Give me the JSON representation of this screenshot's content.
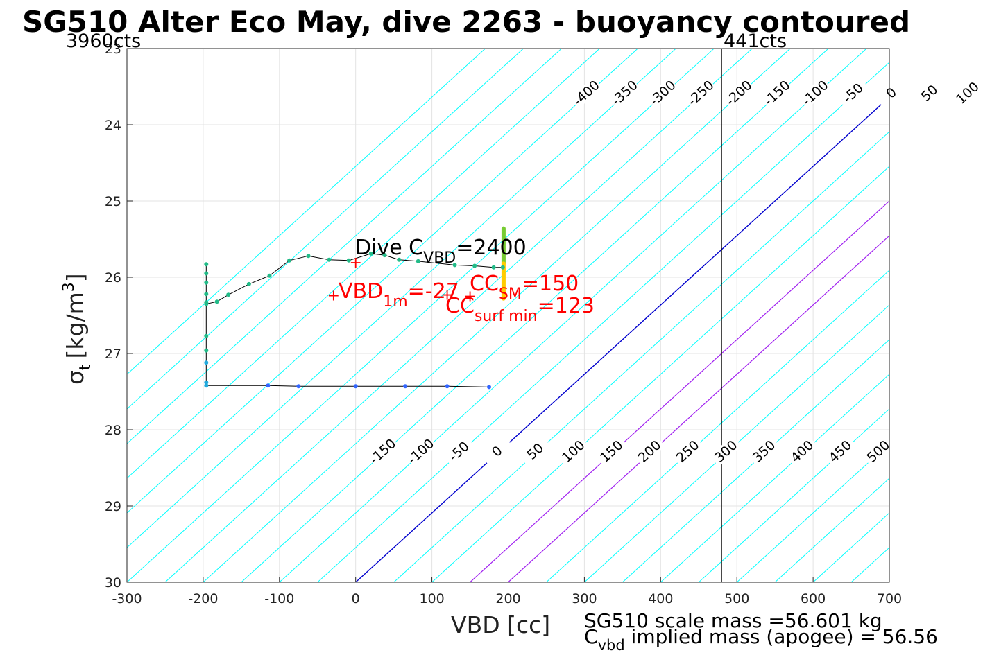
{
  "title": "SG510 Alter Eco May, dive 2263 - buoyancy contoured",
  "counts": {
    "left": "3960cts",
    "right": "441cts"
  },
  "axes": {
    "xlabel": "VBD [cc]",
    "ylabel_main": "σ",
    "ylabel_sub": "t",
    "ylabel_unit": "[kg/m",
    "ylabel_sup": "3",
    "ylabel_close": "]",
    "xticks": [
      "-300",
      "-200",
      "-100",
      "0",
      "100",
      "200",
      "300",
      "400",
      "500",
      "600",
      "700"
    ],
    "yticks": [
      "23",
      "24",
      "25",
      "26",
      "27",
      "28",
      "29",
      "30"
    ]
  },
  "annotations": {
    "dive_c_vbd": {
      "pre": "Dive C",
      "sub": "VBD",
      "post": "=2400"
    },
    "vbd_1m": {
      "pre": "VBD",
      "sub": "1m",
      "post": "=-27"
    },
    "cc_sm": {
      "pre": "CC",
      "sub": "SM",
      "post": "=150"
    },
    "cc_surf_min": {
      "pre": "CC",
      "sub": "surf min",
      "post": "=123"
    }
  },
  "footer": {
    "scale_mass": "SG510 scale mass =56.601 kg",
    "implied_pre": "C",
    "implied_sub": "vbd",
    "implied_post": " implied mass (apogee) = 56.56"
  },
  "colors": {
    "contour": "#00ffff",
    "zero_line": "#0000cd",
    "highlight_lines": "#a020f0",
    "marker_red": "#ff0000",
    "profile_line": "#000000",
    "bottom_points": "#3366ff",
    "upper_points": "#22bb88",
    "bar_top": "#77cc33",
    "bar_bottom": "#ffcc00"
  },
  "chart_data": {
    "type": "scatter",
    "xlim": [
      -300,
      700
    ],
    "ylim": [
      23,
      30
    ],
    "y_reversed": true,
    "grid": true,
    "contour_levels_top": [
      -400,
      -350,
      -300,
      -250,
      -200,
      -150,
      -100,
      -50,
      0,
      50,
      100,
      150,
      200,
      250,
      300,
      350,
      400,
      450,
      500
    ],
    "contour_levels_bottom": [
      -150,
      -100,
      -50,
      0,
      50,
      100,
      150,
      200,
      250,
      300,
      350,
      400,
      450,
      500
    ],
    "highlighted_contours": [
      0,
      150,
      200
    ],
    "vertical_line_vbd": 480,
    "profile_points": [
      {
        "x": 175,
        "y": 27.44
      },
      {
        "x": 120,
        "y": 27.43
      },
      {
        "x": 65,
        "y": 27.43
      },
      {
        "x": 0,
        "y": 27.43
      },
      {
        "x": -75,
        "y": 27.43
      },
      {
        "x": -115,
        "y": 27.42
      },
      {
        "x": -196,
        "y": 27.42
      },
      {
        "x": -196,
        "y": 27.38
      },
      {
        "x": -196,
        "y": 27.12
      },
      {
        "x": -196,
        "y": 26.96
      },
      {
        "x": -196,
        "y": 26.77
      },
      {
        "x": -196,
        "y": 26.33
      },
      {
        "x": -196,
        "y": 26.22
      },
      {
        "x": -196,
        "y": 26.07
      },
      {
        "x": -196,
        "y": 25.95
      },
      {
        "x": -196,
        "y": 25.83
      }
    ],
    "upper_profile_points": [
      {
        "x": -196,
        "y": 26.35
      },
      {
        "x": -182,
        "y": 26.32
      },
      {
        "x": -167,
        "y": 26.23
      },
      {
        "x": -140,
        "y": 26.09
      },
      {
        "x": -113,
        "y": 25.98
      },
      {
        "x": -87,
        "y": 25.78
      },
      {
        "x": -62,
        "y": 25.72
      },
      {
        "x": -35,
        "y": 25.77
      },
      {
        "x": -9,
        "y": 25.78
      },
      {
        "x": 20,
        "y": 25.69
      },
      {
        "x": 38,
        "y": 25.71
      },
      {
        "x": 57,
        "y": 25.77
      },
      {
        "x": 82,
        "y": 25.79
      },
      {
        "x": 130,
        "y": 25.84
      },
      {
        "x": 156,
        "y": 25.85
      },
      {
        "x": 181,
        "y": 25.87
      },
      {
        "x": 193,
        "y": 25.87
      }
    ],
    "red_markers": [
      {
        "x": 0,
        "y": 25.81
      },
      {
        "x": -29,
        "y": 26.24
      },
      {
        "x": 120,
        "y": 26.23
      },
      {
        "x": 150,
        "y": 26.25
      }
    ],
    "bar": {
      "x": 194,
      "y_top": 25.36,
      "y_bottom": 26.28
    }
  }
}
